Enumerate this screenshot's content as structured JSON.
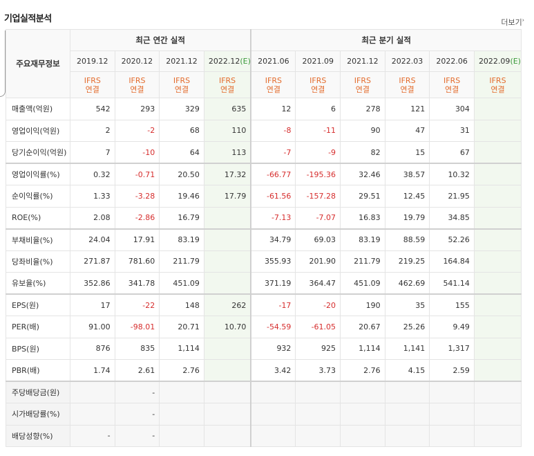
{
  "title": "기업실적분석",
  "more_label": "더보기",
  "header": {
    "label_col": "주요재무정보",
    "annual_group": "최근 연간 실적",
    "quarter_group": "최근 분기 실적",
    "annual_periods": [
      "2019.12",
      "2020.12",
      "2021.12",
      "2022.12"
    ],
    "quarter_periods": [
      "2021.06",
      "2021.09",
      "2021.12",
      "2022.03",
      "2022.06",
      "2022.09"
    ],
    "estimate_marker": "(E)",
    "ifrs_top": "IFRS",
    "ifrs_bottom": "연결"
  },
  "rows": [
    {
      "label": "매출액(억원)",
      "values": [
        "542",
        "293",
        "329",
        "635",
        "12",
        "6",
        "278",
        "121",
        "304",
        ""
      ]
    },
    {
      "label": "영업이익(억원)",
      "values": [
        "2",
        "-2",
        "68",
        "110",
        "-8",
        "-11",
        "90",
        "47",
        "31",
        ""
      ]
    },
    {
      "label": "당기순이익(억원)",
      "values": [
        "7",
        "-10",
        "64",
        "113",
        "-7",
        "-9",
        "82",
        "15",
        "67",
        ""
      ]
    },
    {
      "label": "영업이익률(%)",
      "values": [
        "0.32",
        "-0.71",
        "20.50",
        "17.32",
        "-66.77",
        "-195.36",
        "32.46",
        "38.57",
        "10.32",
        ""
      ]
    },
    {
      "label": "순이익률(%)",
      "values": [
        "1.33",
        "-3.28",
        "19.46",
        "17.79",
        "-61.56",
        "-157.28",
        "29.51",
        "12.45",
        "21.95",
        ""
      ]
    },
    {
      "label": "ROE(%)",
      "values": [
        "2.08",
        "-2.86",
        "16.79",
        "",
        "-7.13",
        "-7.07",
        "16.83",
        "19.79",
        "34.85",
        ""
      ]
    },
    {
      "label": "부채비율(%)",
      "values": [
        "24.04",
        "17.91",
        "83.19",
        "",
        "34.79",
        "69.03",
        "83.19",
        "88.59",
        "52.26",
        ""
      ]
    },
    {
      "label": "당좌비율(%)",
      "values": [
        "271.87",
        "781.60",
        "211.79",
        "",
        "355.93",
        "201.90",
        "211.79",
        "219.25",
        "164.84",
        ""
      ]
    },
    {
      "label": "유보율(%)",
      "values": [
        "352.86",
        "341.78",
        "451.09",
        "",
        "371.19",
        "364.47",
        "451.09",
        "462.69",
        "541.14",
        ""
      ]
    },
    {
      "label": "EPS(원)",
      "values": [
        "17",
        "-22",
        "148",
        "262",
        "-17",
        "-20",
        "190",
        "35",
        "155",
        ""
      ]
    },
    {
      "label": "PER(배)",
      "values": [
        "91.00",
        "-98.01",
        "20.71",
        "10.70",
        "-54.59",
        "-61.05",
        "20.67",
        "25.26",
        "9.49",
        ""
      ]
    },
    {
      "label": "BPS(원)",
      "values": [
        "876",
        "835",
        "1,114",
        "",
        "932",
        "925",
        "1,114",
        "1,141",
        "1,317",
        ""
      ]
    },
    {
      "label": "PBR(배)",
      "values": [
        "1.74",
        "2.61",
        "2.76",
        "",
        "3.42",
        "3.73",
        "2.76",
        "4.15",
        "2.59",
        ""
      ]
    },
    {
      "label": "주당배당금(원)",
      "values": [
        "",
        "-",
        "",
        "",
        "",
        "",
        "",
        "",
        "",
        ""
      ]
    },
    {
      "label": "시가배당률(%)",
      "values": [
        "",
        "-",
        "",
        "",
        "",
        "",
        "",
        "",
        "",
        ""
      ]
    },
    {
      "label": "배당성향(%)",
      "values": [
        "-",
        "-",
        "",
        "",
        "",
        "",
        "",
        "",
        "",
        ""
      ]
    }
  ]
}
